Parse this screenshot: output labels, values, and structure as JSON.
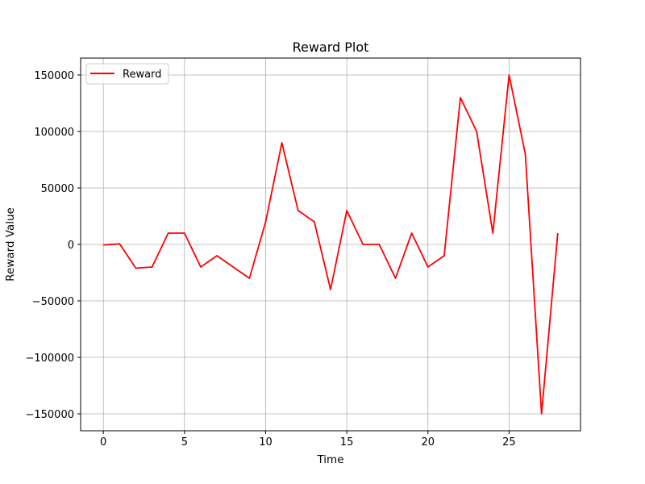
{
  "chart_data": {
    "type": "line",
    "title": "Reward Plot",
    "xlabel": "Time",
    "ylabel": "Reward Value",
    "xlim": [
      -1.4,
      29.4
    ],
    "ylim": [
      -165000,
      165000
    ],
    "xticks": [
      0,
      5,
      10,
      15,
      20,
      25
    ],
    "yticks": [
      -150000,
      -100000,
      -50000,
      0,
      50000,
      100000,
      150000
    ],
    "grid": true,
    "legend_position": "top-left",
    "series": [
      {
        "name": "Reward",
        "color": "#ff0000",
        "x": [
          0,
          1,
          2,
          3,
          4,
          5,
          6,
          7,
          8,
          9,
          10,
          11,
          12,
          13,
          14,
          15,
          16,
          17,
          18,
          19,
          20,
          21,
          22,
          23,
          24,
          25,
          26,
          27,
          28
        ],
        "y": [
          -500,
          500,
          -21000,
          -20000,
          10000,
          10000,
          -20000,
          -10000,
          -20000,
          -30000,
          20000,
          90000,
          30000,
          20000,
          -40000,
          30000,
          0,
          0,
          -30000,
          10000,
          -20000,
          -10000,
          130000,
          100000,
          10000,
          150000,
          80000,
          -150000,
          10000
        ]
      }
    ]
  }
}
